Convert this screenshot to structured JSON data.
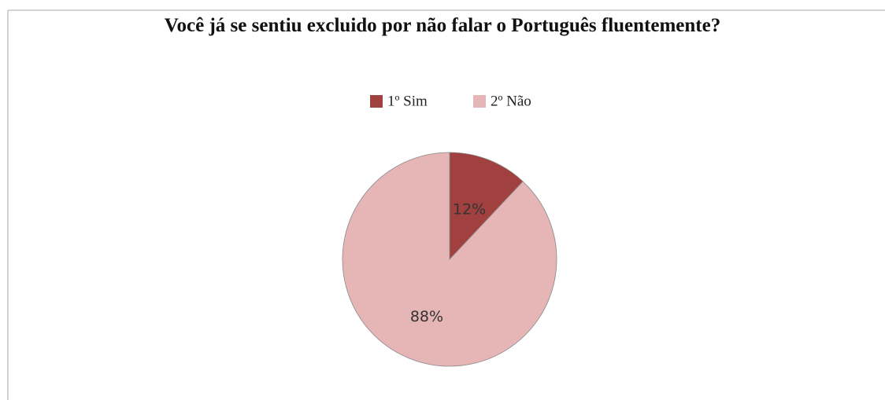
{
  "chart_data": {
    "type": "pie",
    "title": "Você já se sentiu excluido por não falar o Português fluentemente?",
    "categories": [
      "1º Sim",
      "2º Não"
    ],
    "values": [
      12,
      88
    ],
    "value_labels": [
      "12%",
      "88%"
    ],
    "colors": [
      "#a0413f",
      "#e6b5b5"
    ],
    "legend": "top"
  }
}
